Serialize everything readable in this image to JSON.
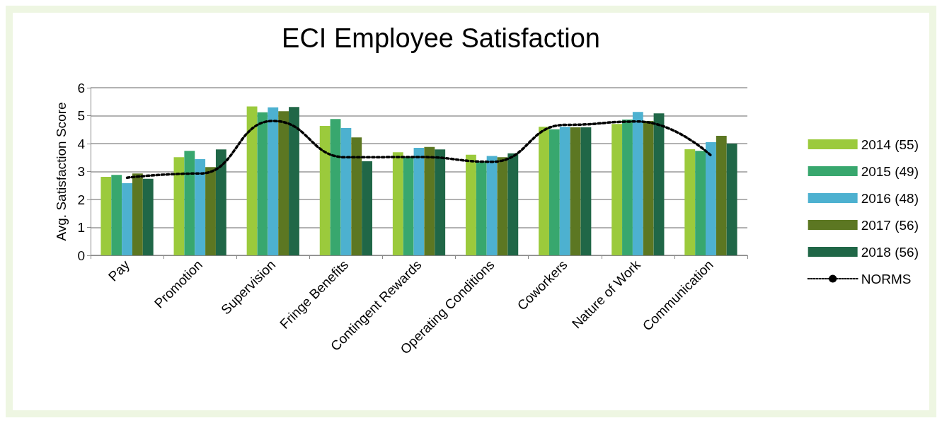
{
  "chart_data": {
    "type": "bar",
    "title": "ECI Employee Satisfaction",
    "ylabel": "Avg. Satisfaction Score",
    "categories": [
      "Pay",
      "Promotion",
      "Supervision",
      "Fringe Benefits",
      "Contingent Rewards",
      "Operating Conditions",
      "Coworkers",
      "Nature of Work",
      "Communication"
    ],
    "series": [
      {
        "name": "2014 (55)",
        "color": "#9bca3c",
        "values": [
          2.81,
          3.51,
          5.33,
          4.63,
          3.69,
          3.6,
          4.6,
          4.7,
          3.8
        ]
      },
      {
        "name": "2015 (49)",
        "color": "#38a76e",
        "values": [
          2.88,
          3.74,
          5.12,
          4.88,
          3.51,
          3.35,
          4.51,
          4.86,
          3.74
        ]
      },
      {
        "name": "2016 (48)",
        "color": "#4db1d0",
        "values": [
          2.58,
          3.44,
          5.3,
          4.56,
          3.85,
          3.56,
          4.6,
          5.13,
          4.05
        ]
      },
      {
        "name": "2017 (56)",
        "color": "#5c7722",
        "values": [
          2.93,
          3.16,
          5.16,
          4.22,
          3.88,
          3.51,
          4.58,
          4.81,
          4.28
        ]
      },
      {
        "name": "2018 (56)",
        "color": "#206747",
        "values": [
          2.74,
          3.79,
          5.31,
          3.37,
          3.79,
          3.65,
          4.58,
          5.08,
          4.0
        ]
      },
      {
        "name": "NORMS",
        "type": "line",
        "color": "#000000",
        "line_style": "dotted",
        "values": [
          2.78,
          2.93,
          4.81,
          3.51,
          3.52,
          3.35,
          4.67,
          4.79,
          3.58
        ]
      }
    ],
    "ylim": [
      0,
      6
    ],
    "yticks": [
      0,
      1,
      2,
      3,
      4,
      5,
      6
    ],
    "grid": "y",
    "legend": "right"
  }
}
